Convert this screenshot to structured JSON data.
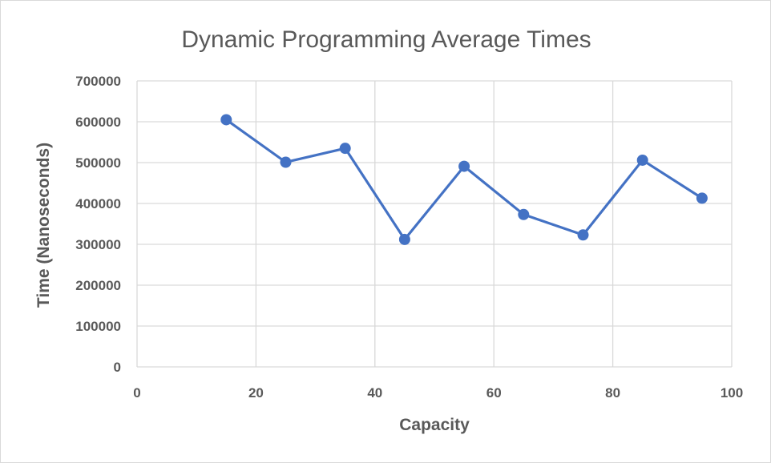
{
  "chart_data": {
    "type": "scatter",
    "title": "Dynamic Programming Average Times",
    "xlabel": "Capacity",
    "ylabel": "Time (Nanoseconds)",
    "xlim": [
      0,
      100
    ],
    "ylim": [
      0,
      700000
    ],
    "xticks": [
      0,
      20,
      40,
      60,
      80,
      100
    ],
    "yticks": [
      0,
      100000,
      200000,
      300000,
      400000,
      500000,
      600000,
      700000
    ],
    "grid": true,
    "legend": "none",
    "series": [
      {
        "color": "#4472c4",
        "markers": true,
        "lines": true,
        "x": [
          15,
          25,
          35,
          45,
          55,
          65,
          75,
          85,
          95
        ],
        "y": [
          605000,
          501000,
          535000,
          312000,
          491000,
          373000,
          323000,
          506000,
          413000
        ]
      }
    ]
  }
}
